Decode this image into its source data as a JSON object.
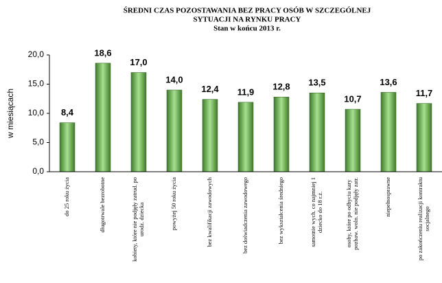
{
  "chart_data": {
    "type": "bar",
    "title": [
      "ŚREDNI  CZAS  POZOSTAWANIA  BEZ  PRACY  OSÓB  W  SZCZEGÓLNEJ",
      "SYTUACJI  NA  RYNKU  PRACY"
    ],
    "subtitle": "Stan  w  końcu 2013 r.",
    "y_label": "w miesiącach",
    "categories": [
      [
        "do 25 roku życia"
      ],
      [
        "długotrwale bezrobotne"
      ],
      [
        "kobiety, które nie podjęły zatrud. po",
        "urodz. dziecka"
      ],
      [
        "powyżej 50 roku życia"
      ],
      [
        "bez kwalifikacji zawodowych"
      ],
      [
        "bez doświadczenia  zawodowego"
      ],
      [
        "bez wykształcenia  średniego"
      ],
      [
        "samotnie wych. co najmniej 1",
        "dziecko do 18 r.ż."
      ],
      [
        "osoby, które po odbyciu kary",
        "pozbaw. woln. nie podjęły zatr."
      ],
      [
        "niepełnosprawne"
      ],
      [
        "po zakończeniu realizacji  kontraktu",
        "socjalnego"
      ]
    ],
    "values": [
      8.4,
      18.6,
      17.0,
      14.0,
      12.4,
      11.9,
      12.8,
      13.5,
      10.7,
      13.6,
      11.7
    ],
    "value_labels": [
      "8,4",
      "18,6",
      "17,0",
      "14,0",
      "12,4",
      "11,9",
      "12,8",
      "13,5",
      "10,7",
      "13,6",
      "11,7"
    ],
    "color": "#a6e08f",
    "ylim": [
      0,
      20
    ],
    "yticks": [
      {
        "value": 0,
        "label": "0,0"
      },
      {
        "value": 5,
        "label": "5,0"
      },
      {
        "value": 10,
        "label": "10,0"
      },
      {
        "value": 15,
        "label": "15,0"
      },
      {
        "value": 20,
        "label": "20,0"
      }
    ],
    "grid": false
  }
}
